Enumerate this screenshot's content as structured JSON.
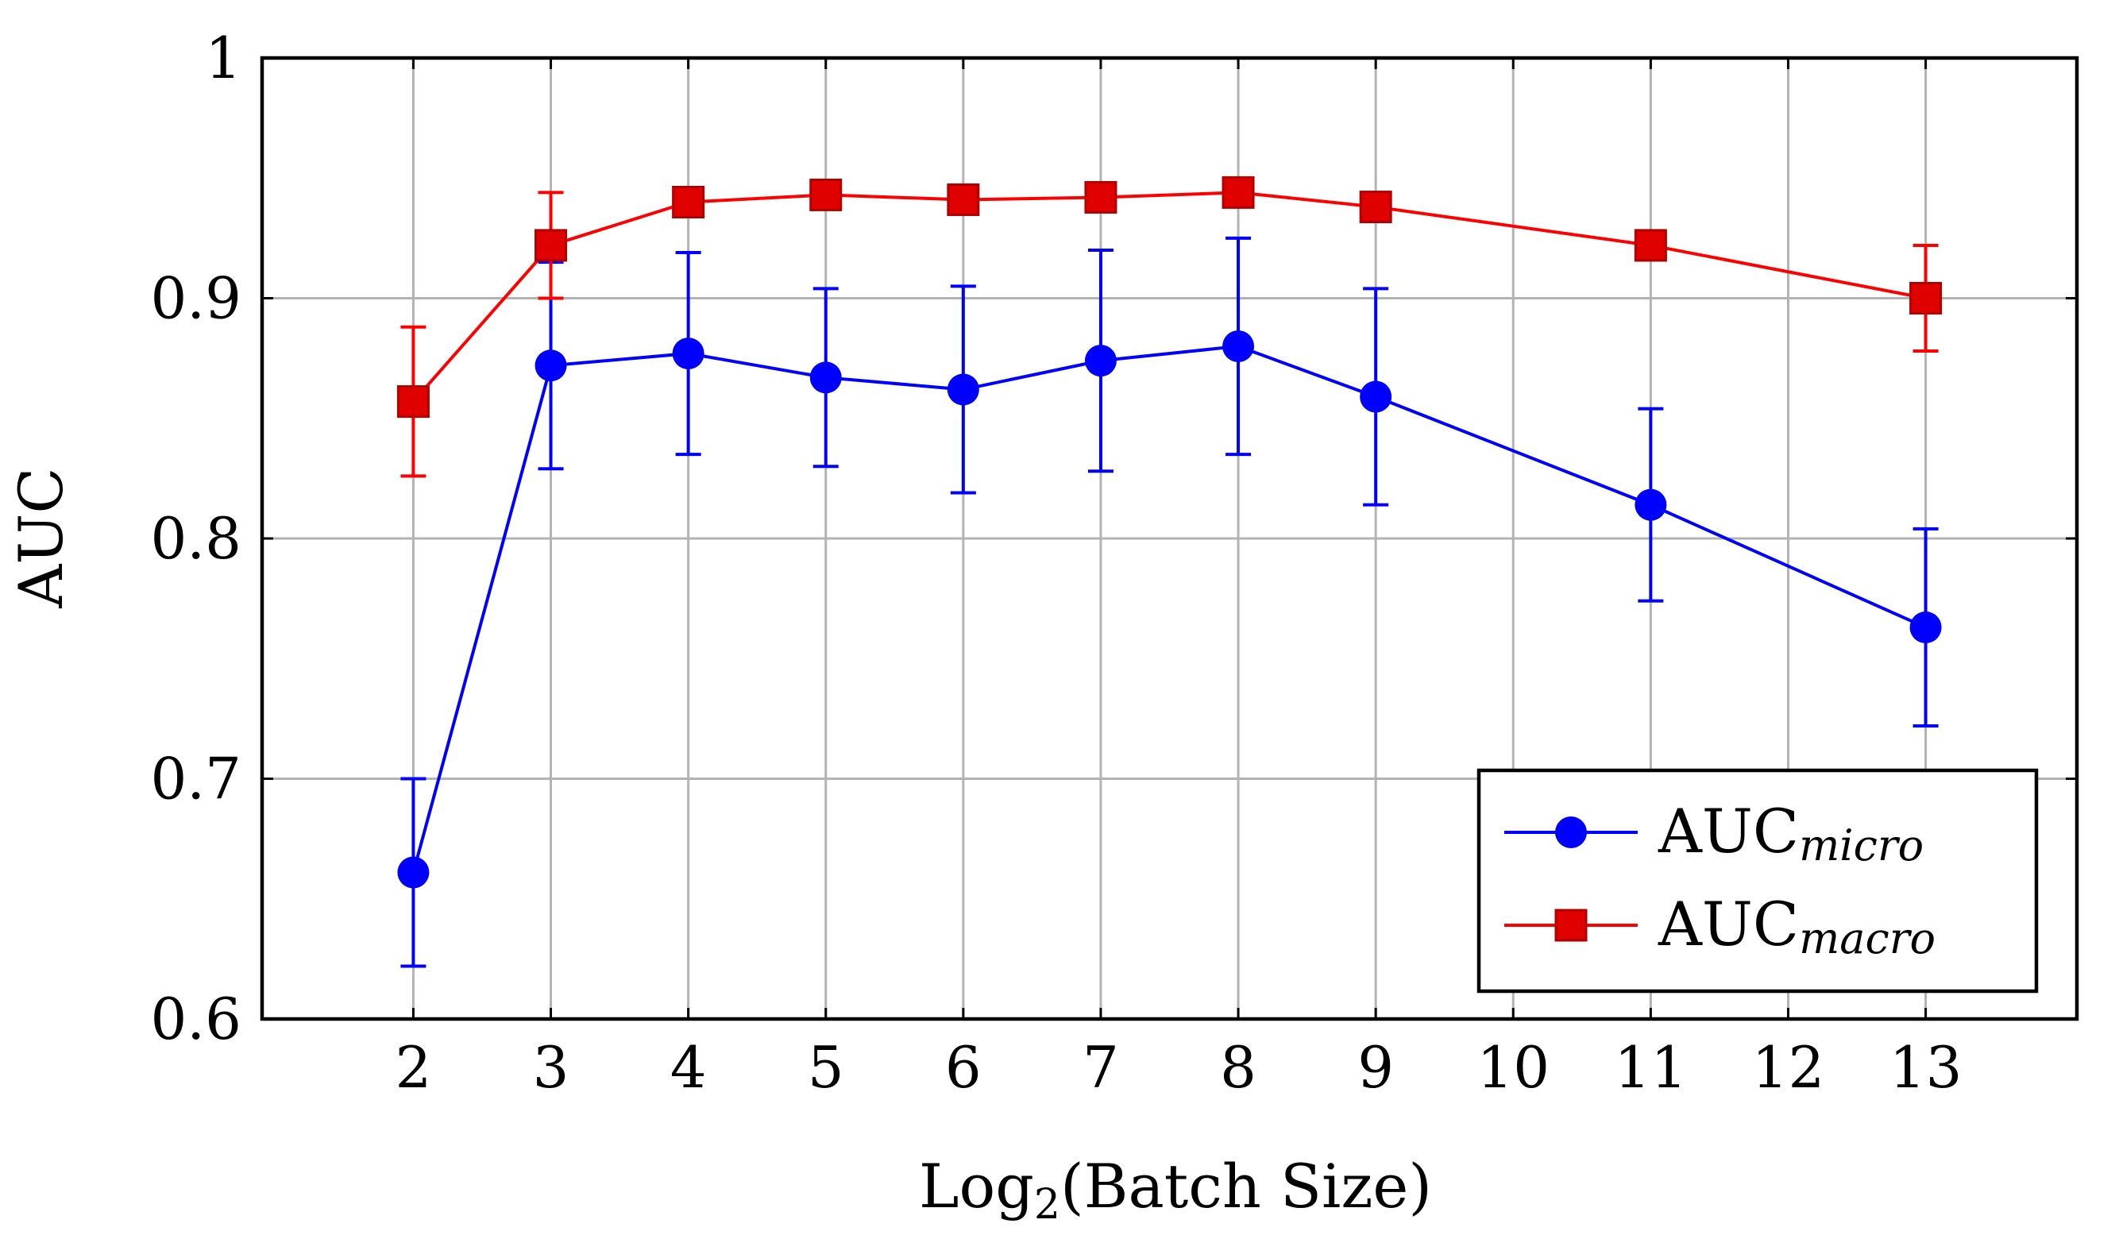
{
  "chart_data": {
    "type": "line",
    "title": "",
    "xlabel": "Log",
    "xlabel_sub": "2",
    "xlabel_suffix": "(Batch Size)",
    "ylabel": "AUC",
    "xlim": [
      0.9,
      14.1
    ],
    "ylim": [
      0.6,
      1.0
    ],
    "xticks": [
      2,
      3,
      4,
      5,
      6,
      7,
      8,
      9,
      10,
      11,
      12,
      13
    ],
    "yticks": [
      0.6,
      0.7,
      0.8,
      0.9,
      1.0
    ],
    "ytick_labels": [
      "0.6",
      "0.7",
      "0.8",
      "0.9",
      "1"
    ],
    "grid": true,
    "legend_position": "bottom-right",
    "series": [
      {
        "name": "AUC",
        "name_sub": "micro",
        "color": "#0000ff",
        "marker": "circle",
        "x": [
          2,
          3,
          4,
          5,
          6,
          7,
          8,
          9,
          11,
          13
        ],
        "y": [
          0.661,
          0.872,
          0.877,
          0.867,
          0.862,
          0.874,
          0.88,
          0.859,
          0.814,
          0.763
        ],
        "err": [
          0.039,
          0.043,
          0.042,
          0.037,
          0.043,
          0.046,
          0.045,
          0.045,
          0.04,
          0.041
        ]
      },
      {
        "name": "AUC",
        "name_sub": "macro",
        "color": "#ff0000",
        "marker": "square",
        "x": [
          2,
          3,
          4,
          5,
          6,
          7,
          8,
          9,
          11,
          13
        ],
        "y": [
          0.857,
          0.922,
          0.94,
          0.943,
          0.941,
          0.942,
          0.944,
          0.938,
          0.922,
          0.9
        ],
        "err": [
          0.031,
          0.022,
          0.0,
          0.0,
          0.0,
          0.0,
          0.0,
          0.0,
          0.0,
          0.022
        ]
      }
    ]
  }
}
